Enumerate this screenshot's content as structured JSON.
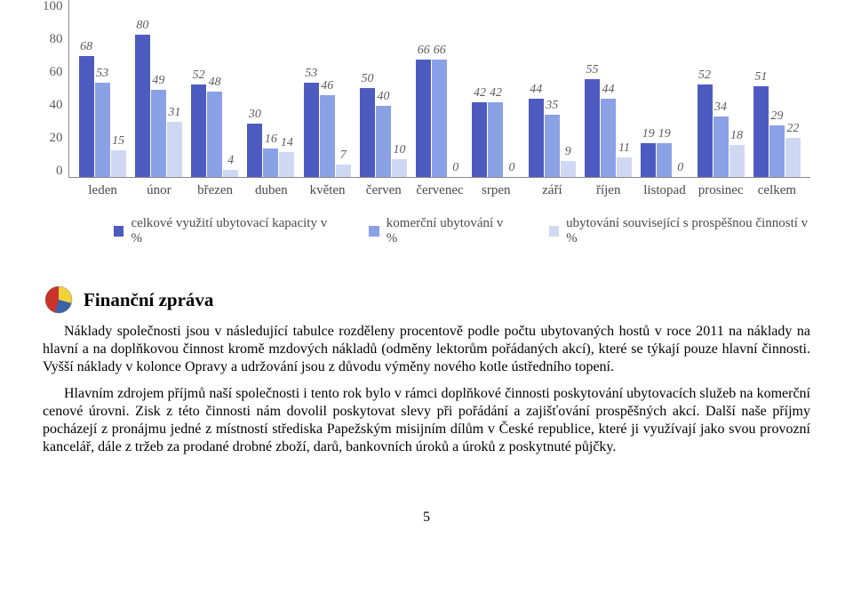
{
  "chart": {
    "ymax": 100,
    "yticks": [
      100,
      80,
      60,
      40,
      20,
      0
    ],
    "series_colors": [
      "#4d5bc1",
      "#8aa1e6",
      "#cfd8f3"
    ],
    "categories": [
      "leden",
      "únor",
      "březen",
      "duben",
      "květen",
      "červen",
      "červenec",
      "srpen",
      "září",
      "říjen",
      "listopad",
      "prosinec",
      "celkem"
    ],
    "values": [
      [
        68,
        53,
        15
      ],
      [
        80,
        49,
        31
      ],
      [
        52,
        48,
        4
      ],
      [
        30,
        16,
        14
      ],
      [
        53,
        46,
        7
      ],
      [
        50,
        40,
        10
      ],
      [
        66,
        66,
        0
      ],
      [
        42,
        42,
        0
      ],
      [
        44,
        35,
        9
      ],
      [
        55,
        44,
        11
      ],
      [
        19,
        19,
        0
      ],
      [
        52,
        34,
        18
      ],
      [
        51,
        29,
        22
      ]
    ],
    "legend": [
      "celkové využití ubytovací kapacity v %",
      "komerční ubytování v %",
      "ubytování související s prospěšnou činností v %"
    ]
  },
  "report": {
    "title": "Finanční zpráva",
    "p1": "Náklady společnosti jsou v následující tabulce rozděleny procentově podle počtu ubytovaných hostů v roce 2011 na náklady na hlavní a na doplňkovou činnost kromě mzdových nákladů (odměny lektorům pořádaných akcí), které se týkají pouze hlavní činnosti. Vyšší náklady v kolonce Opravy a udržování jsou z důvodu výměny nového kotle ústředního topení.",
    "p2": "Hlavním zdrojem příjmů naší společnosti i tento rok bylo v rámci doplňkové činnosti poskytování ubytovacích služeb na komerční cenové úrovni. Zisk z této činnosti nám dovolil poskytovat slevy při pořádání a zajišťování prospěšných akcí. Další naše příjmy pocházejí z pronájmu jedné z místností střediska Papežským misijním dílům v České republice, které ji využívají jako svou provozní kancelář, dále z tržeb za prodané drobné zboží, darů, bankovních úroků a úroků z poskytnuté půjčky."
  },
  "pagenum": "5"
}
